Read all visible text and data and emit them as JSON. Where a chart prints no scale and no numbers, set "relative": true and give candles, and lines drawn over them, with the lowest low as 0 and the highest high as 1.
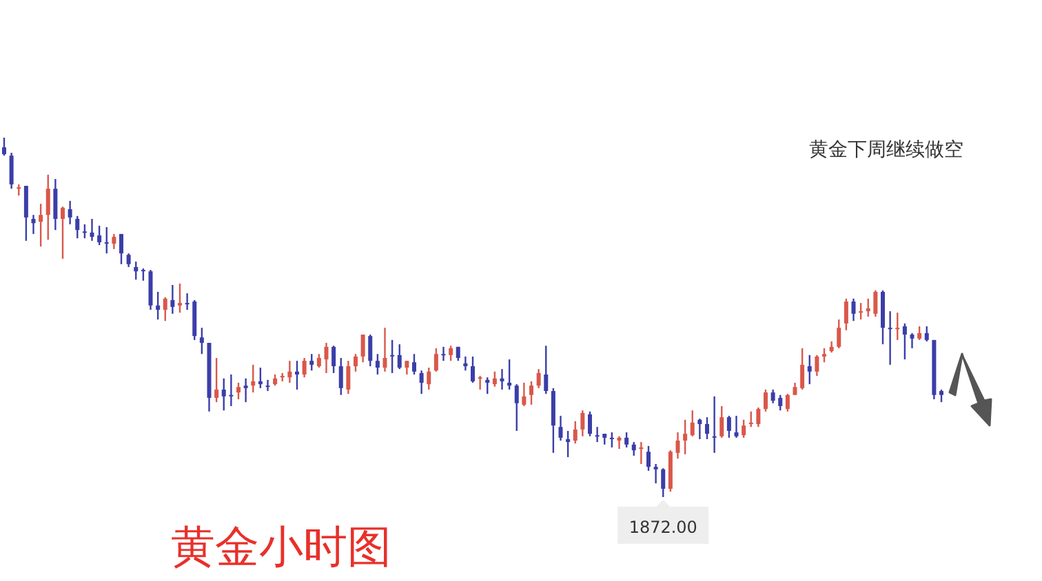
{
  "chart_data": {
    "type": "candlestick",
    "relative": true,
    "title": "黄金小时图",
    "annotations": [
      "黄金下周继续做空",
      {
        "text": "1872.00",
        "y": 0
      }
    ],
    "categories": [
      null,
      null,
      null,
      null,
      null,
      null,
      null,
      null,
      null,
      null,
      null,
      null,
      null,
      null,
      null,
      null,
      null,
      null,
      null,
      null,
      null,
      null,
      null,
      null,
      null,
      null,
      null,
      null,
      null,
      null,
      null,
      null,
      null,
      null,
      null,
      null,
      null,
      null,
      null,
      null,
      null,
      null,
      null,
      null,
      null,
      null,
      null,
      null,
      null,
      null,
      null,
      null,
      null,
      null,
      null,
      null,
      null,
      null,
      null,
      null,
      null,
      null,
      null,
      null,
      null,
      null,
      null,
      null,
      null,
      null,
      null,
      null,
      null,
      null,
      null,
      null,
      null,
      null,
      null,
      null,
      null,
      null,
      null,
      null,
      null,
      null,
      null,
      null,
      null,
      null,
      null,
      null,
      null,
      null,
      null,
      null,
      null,
      null,
      null,
      null,
      null,
      null,
      null,
      null,
      null,
      null,
      null,
      null,
      null,
      null,
      null,
      null,
      null,
      null,
      null,
      null,
      null,
      null,
      null,
      null,
      null,
      null,
      null,
      null,
      null,
      null,
      null,
      null,
      null
    ],
    "ohlc": [
      [
        0.973,
        1,
        0.95,
        0.954
      ],
      [
        0.95,
        0.958,
        0.858,
        0.87
      ],
      [
        0.858,
        0.87,
        0.839,
        0.862
      ],
      [
        0.866,
        0.866,
        0.713,
        0.778
      ],
      [
        0.774,
        0.785,
        0.732,
        0.762
      ],
      [
        0.766,
        0.816,
        0.697,
        0.785
      ],
      [
        0.785,
        0.897,
        0.716,
        0.858
      ],
      [
        0.858,
        0.885,
        0.743,
        0.774
      ],
      [
        0.774,
        0.808,
        0.663,
        0.805
      ],
      [
        0.801,
        0.824,
        0.759,
        0.778
      ],
      [
        0.774,
        0.782,
        0.72,
        0.743
      ],
      [
        0.739,
        0.759,
        0.72,
        0.738
      ],
      [
        0.736,
        0.774,
        0.713,
        0.724
      ],
      [
        0.728,
        0.755,
        0.701,
        0.709
      ],
      [
        0.709,
        0.751,
        0.678,
        0.708
      ],
      [
        0.705,
        0.732,
        0.69,
        0.724
      ],
      [
        0.732,
        0.732,
        0.648,
        0.678
      ],
      [
        0.674,
        0.678,
        0.64,
        0.648
      ],
      [
        0.64,
        0.655,
        0.605,
        0.628
      ],
      [
        0.632,
        0.636,
        0.602,
        0.631
      ],
      [
        0.628,
        0.632,
        0.521,
        0.533
      ],
      [
        0.533,
        0.571,
        0.494,
        0.521
      ],
      [
        0.521,
        0.556,
        0.49,
        0.552
      ],
      [
        0.548,
        0.59,
        0.51,
        0.529
      ],
      [
        0.533,
        0.594,
        0.513,
        0.54
      ],
      [
        0.54,
        0.567,
        0.521,
        0.539
      ],
      [
        0.544,
        0.548,
        0.437,
        0.448
      ],
      [
        0.444,
        0.471,
        0.398,
        0.429
      ],
      [
        0.429,
        0.429,
        0.238,
        0.276
      ],
      [
        0.276,
        0.387,
        0.264,
        0.299
      ],
      [
        0.299,
        0.33,
        0.241,
        0.28
      ],
      [
        0.284,
        0.341,
        0.253,
        0.283
      ],
      [
        0.291,
        0.318,
        0.272,
        0.306
      ],
      [
        0.31,
        0.33,
        0.264,
        0.303
      ],
      [
        0.31,
        0.368,
        0.291,
        0.322
      ],
      [
        0.322,
        0.36,
        0.303,
        0.314
      ],
      [
        0.31,
        0.326,
        0.295,
        0.309
      ],
      [
        0.314,
        0.341,
        0.31,
        0.33
      ],
      [
        0.333,
        0.345,
        0.322,
        0.337
      ],
      [
        0.333,
        0.379,
        0.318,
        0.349
      ],
      [
        0.349,
        0.379,
        0.299,
        0.341
      ],
      [
        0.341,
        0.387,
        0.333,
        0.379
      ],
      [
        0.379,
        0.398,
        0.352,
        0.368
      ],
      [
        0.364,
        0.398,
        0.36,
        0.387
      ],
      [
        0.383,
        0.429,
        0.345,
        0.418
      ],
      [
        0.418,
        0.421,
        0.345,
        0.364
      ],
      [
        0.364,
        0.387,
        0.284,
        0.303
      ],
      [
        0.299,
        0.379,
        0.287,
        0.364
      ],
      [
        0.364,
        0.398,
        0.349,
        0.391
      ],
      [
        0.391,
        0.452,
        0.375,
        0.452
      ],
      [
        0.448,
        0.452,
        0.364,
        0.379
      ],
      [
        0.379,
        0.398,
        0.341,
        0.36
      ],
      [
        0.36,
        0.471,
        0.349,
        0.387
      ],
      [
        0.395,
        0.437,
        0.345,
        0.394
      ],
      [
        0.395,
        0.425,
        0.356,
        0.36
      ],
      [
        0.36,
        0.379,
        0.341,
        0.379
      ],
      [
        0.375,
        0.398,
        0.341,
        0.349
      ],
      [
        0.345,
        0.352,
        0.287,
        0.318
      ],
      [
        0.314,
        0.36,
        0.299,
        0.349
      ],
      [
        0.352,
        0.414,
        0.349,
        0.398
      ],
      [
        0.398,
        0.418,
        0.379,
        0.397
      ],
      [
        0.395,
        0.421,
        0.379,
        0.414
      ],
      [
        0.418,
        0.418,
        0.379,
        0.387
      ],
      [
        0.372,
        0.391,
        0.352,
        0.364
      ],
      [
        0.364,
        0.391,
        0.318,
        0.322
      ],
      [
        0.33,
        0.337,
        0.299,
        0.333
      ],
      [
        0.326,
        0.333,
        0.287,
        0.318
      ],
      [
        0.314,
        0.349,
        0.307,
        0.33
      ],
      [
        0.33,
        0.356,
        0.299,
        0.322
      ],
      [
        0.318,
        0.383,
        0.299,
        0.31
      ],
      [
        0.31,
        0.314,
        0.184,
        0.261
      ],
      [
        0.257,
        0.318,
        0.253,
        0.28
      ],
      [
        0.284,
        0.322,
        0.257,
        0.31
      ],
      [
        0.31,
        0.356,
        0.303,
        0.345
      ],
      [
        0.341,
        0.421,
        0.287,
        0.295
      ],
      [
        0.295,
        0.303,
        0.123,
        0.199
      ],
      [
        0.195,
        0.226,
        0.157,
        0.165
      ],
      [
        0.161,
        0.184,
        0.111,
        0.153
      ],
      [
        0.157,
        0.211,
        0.149,
        0.188
      ],
      [
        0.188,
        0.241,
        0.169,
        0.234
      ],
      [
        0.23,
        0.238,
        0.169,
        0.176
      ],
      [
        0.172,
        0.195,
        0.153,
        0.171
      ],
      [
        0.176,
        0.176,
        0.146,
        0.165
      ],
      [
        0.165,
        0.18,
        0.138,
        0.161
      ],
      [
        0.157,
        0.169,
        0.134,
        0.165
      ],
      [
        0.165,
        0.18,
        0.138,
        0.146
      ],
      [
        0.146,
        0.153,
        0.115,
        0.13
      ],
      [
        0.134,
        0.153,
        0.092,
        0.138
      ],
      [
        0.126,
        0.142,
        0.073,
        0.084
      ],
      [
        0.084,
        0.092,
        0.038,
        0.077
      ],
      [
        0.077,
        0.08,
        0,
        0.023
      ],
      [
        0.023,
        0.13,
        0.015,
        0.126
      ],
      [
        0.123,
        0.18,
        0.107,
        0.157
      ],
      [
        0.157,
        0.215,
        0.119,
        0.176
      ],
      [
        0.172,
        0.241,
        0.169,
        0.207
      ],
      [
        0.215,
        0.218,
        0.161,
        0.203
      ],
      [
        0.203,
        0.222,
        0.161,
        0.176
      ],
      [
        0.169,
        0.28,
        0.123,
        0.168
      ],
      [
        0.169,
        0.253,
        0.165,
        0.222
      ],
      [
        0.222,
        0.226,
        0.165,
        0.184
      ],
      [
        0.18,
        0.226,
        0.165,
        0.169
      ],
      [
        0.172,
        0.215,
        0.165,
        0.199
      ],
      [
        0.203,
        0.238,
        0.195,
        0.207
      ],
      [
        0.203,
        0.249,
        0.195,
        0.245
      ],
      [
        0.245,
        0.299,
        0.238,
        0.291
      ],
      [
        0.291,
        0.299,
        0.261,
        0.268
      ],
      [
        0.276,
        0.284,
        0.241,
        0.253
      ],
      [
        0.245,
        0.287,
        0.238,
        0.284
      ],
      [
        0.284,
        0.318,
        0.284,
        0.306
      ],
      [
        0.303,
        0.414,
        0.299,
        0.368
      ],
      [
        0.364,
        0.395,
        0.314,
        0.349
      ],
      [
        0.349,
        0.395,
        0.337,
        0.391
      ],
      [
        0.391,
        0.414,
        0.375,
        0.398
      ],
      [
        0.406,
        0.433,
        0.402,
        0.418
      ],
      [
        0.418,
        0.494,
        0.414,
        0.471
      ],
      [
        0.483,
        0.552,
        0.464,
        0.544
      ],
      [
        0.544,
        0.552,
        0.49,
        0.51
      ],
      [
        0.513,
        0.54,
        0.494,
        0.517
      ],
      [
        0.517,
        0.552,
        0.502,
        0.525
      ],
      [
        0.51,
        0.575,
        0.502,
        0.571
      ],
      [
        0.571,
        0.575,
        0.425,
        0.471
      ],
      [
        0.471,
        0.517,
        0.368,
        0.47
      ],
      [
        0.467,
        0.513,
        0.437,
        0.471
      ],
      [
        0.475,
        0.483,
        0.383,
        0.452
      ],
      [
        0.452,
        0.456,
        0.414,
        0.441
      ],
      [
        0.441,
        0.475,
        0.437,
        0.456
      ],
      [
        0.456,
        0.475,
        0.433,
        0.437
      ],
      [
        0.437,
        0.437,
        0.272,
        0.284
      ],
      [
        0.295,
        0.299,
        0.264,
        0.284
      ]
    ],
    "colors": [
      "#3b3ea8",
      "#3b3ea8",
      "#d9584a",
      "#3b3ea8",
      "#3b3ea8",
      "#d9584a",
      "#d9584a",
      "#3b3ea8",
      "#d9584a",
      "#3b3ea8",
      "#3b3ea8",
      "#3b3ea8",
      "#3b3ea8",
      "#3b3ea8",
      "#3b3ea8",
      "#d9584a",
      "#3b3ea8",
      "#3b3ea8",
      "#3b3ea8",
      "#3b3ea8",
      "#3b3ea8",
      "#3b3ea8",
      "#d9584a",
      "#3b3ea8",
      "#d9584a",
      "#3b3ea8",
      "#3b3ea8",
      "#3b3ea8",
      "#3b3ea8",
      "#d9584a",
      "#3b3ea8",
      "#3b3ea8",
      "#d9584a",
      "#3b3ea8",
      "#d9584a",
      "#3b3ea8",
      "#3b3ea8",
      "#d9584a",
      "#d9584a",
      "#d9584a",
      "#3b3ea8",
      "#d9584a",
      "#3b3ea8",
      "#d9584a",
      "#d9584a",
      "#3b3ea8",
      "#3b3ea8",
      "#d9584a",
      "#d9584a",
      "#d9584a",
      "#3b3ea8",
      "#3b3ea8",
      "#d9584a",
      "#3b3ea8",
      "#3b3ea8",
      "#d9584a",
      "#3b3ea8",
      "#3b3ea8",
      "#d9584a",
      "#d9584a",
      "#3b3ea8",
      "#d9584a",
      "#3b3ea8",
      "#3b3ea8",
      "#3b3ea8",
      "#d9584a",
      "#3b3ea8",
      "#d9584a",
      "#3b3ea8",
      "#3b3ea8",
      "#3b3ea8",
      "#d9584a",
      "#d9584a",
      "#d9584a",
      "#3b3ea8",
      "#3b3ea8",
      "#3b3ea8",
      "#3b3ea8",
      "#d9584a",
      "#d9584a",
      "#3b3ea8",
      "#3b3ea8",
      "#3b3ea8",
      "#3b3ea8",
      "#d9584a",
      "#3b3ea8",
      "#3b3ea8",
      "#d9584a",
      "#3b3ea8",
      "#3b3ea8",
      "#3b3ea8",
      "#d9584a",
      "#d9584a",
      "#d9584a",
      "#d9584a",
      "#3b3ea8",
      "#3b3ea8",
      "#3b3ea8",
      "#d9584a",
      "#3b3ea8",
      "#3b3ea8",
      "#d9584a",
      "#d9584a",
      "#d9584a",
      "#d9584a",
      "#3b3ea8",
      "#3b3ea8",
      "#d9584a",
      "#d9584a",
      "#d9584a",
      "#3b3ea8",
      "#d9584a",
      "#d9584a",
      "#d9584a",
      "#d9584a",
      "#d9584a",
      "#3b3ea8",
      "#d9584a",
      "#d9584a",
      "#d9584a",
      "#3b3ea8",
      "#3b3ea8",
      "#d9584a",
      "#3b3ea8",
      "#3b3ea8",
      "#d9584a",
      "#3b3ea8",
      "#3b3ea8",
      "#3b3ea8"
    ]
  }
}
